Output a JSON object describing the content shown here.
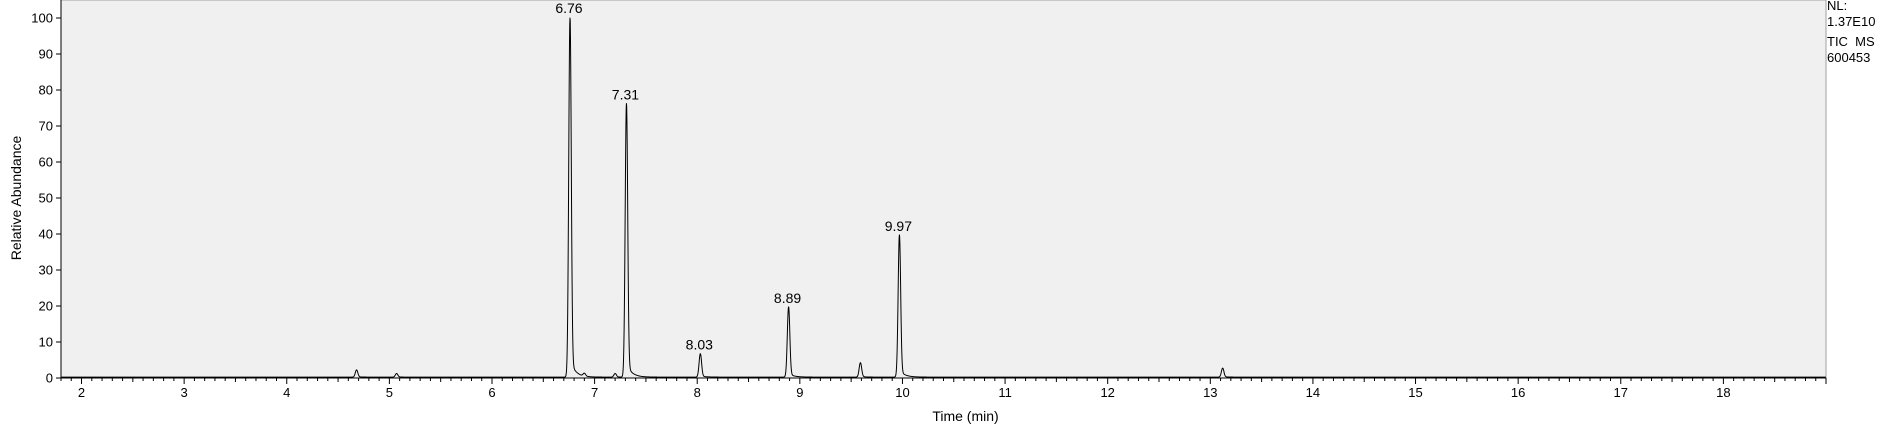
{
  "chart_data": {
    "type": "line",
    "xlabel": "Time (min)",
    "ylabel": "Relative Abundance",
    "xlim": [
      1.8,
      19.0
    ],
    "ylim": [
      0,
      100
    ],
    "x_ticks": [
      2,
      3,
      4,
      5,
      6,
      7,
      8,
      9,
      10,
      11,
      12,
      13,
      14,
      15,
      16,
      17,
      18
    ],
    "y_ticks": [
      0,
      10,
      20,
      30,
      40,
      50,
      60,
      70,
      80,
      90,
      100
    ],
    "grid": false,
    "peaks": [
      {
        "label": "6.76",
        "rt": 6.76,
        "height": 100
      },
      {
        "label": "7.31",
        "rt": 7.31,
        "height": 76
      },
      {
        "label": "8.03",
        "rt": 8.03,
        "height": 6.5
      },
      {
        "label": "8.89",
        "rt": 8.89,
        "height": 19.5
      },
      {
        "label": "9.97",
        "rt": 9.97,
        "height": 39.5
      }
    ],
    "minor_peaks": [
      {
        "rt": 4.68,
        "height": 2
      },
      {
        "rt": 5.07,
        "height": 1
      },
      {
        "rt": 6.9,
        "height": 0.8
      },
      {
        "rt": 7.2,
        "height": 1
      },
      {
        "rt": 9.59,
        "height": 4
      },
      {
        "rt": 13.12,
        "height": 2.5
      }
    ]
  },
  "annotation": {
    "nl_label": "NL:",
    "nl_value": "1.37E10",
    "scan_filter": "TIC  MS",
    "sample_id": "600453"
  },
  "colors": {
    "plot_background": "#f0f0f0",
    "trace": "#000000"
  }
}
